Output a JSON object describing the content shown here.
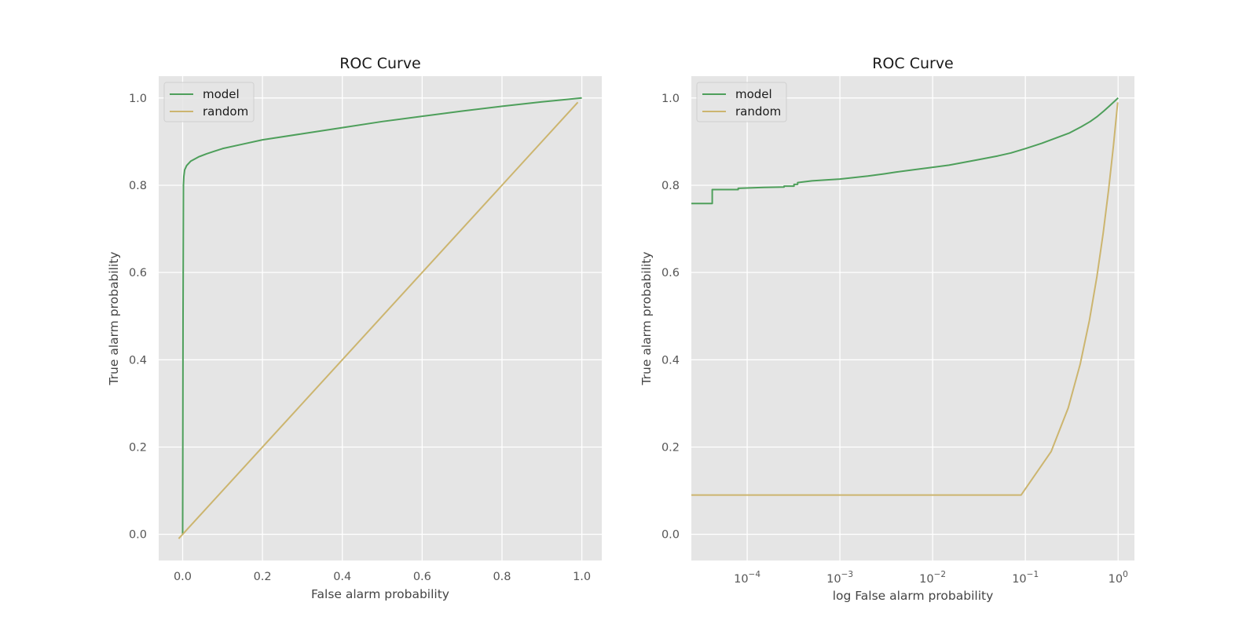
{
  "colors": {
    "model": "#4e9f5b",
    "random": "#ccb56f",
    "panel_bg": "#e5e5e5",
    "grid": "#ffffff"
  },
  "chart_data": [
    {
      "type": "line",
      "title": "ROC Curve",
      "xlabel": "False alarm probability",
      "ylabel": "True alarm probability",
      "xscale": "linear",
      "xlim": [
        -0.06,
        1.05
      ],
      "ylim": [
        -0.06,
        1.05
      ],
      "xticks": [
        0.0,
        0.2,
        0.4,
        0.6,
        0.8,
        1.0
      ],
      "xtick_labels": [
        "0.0",
        "0.2",
        "0.4",
        "0.6",
        "0.8",
        "1.0"
      ],
      "yticks": [
        0.0,
        0.2,
        0.4,
        0.6,
        0.8,
        1.0
      ],
      "ytick_labels": [
        "0.0",
        "0.2",
        "0.4",
        "0.6",
        "0.8",
        "1.0"
      ],
      "grid": true,
      "legend": {
        "position": "upper-left",
        "entries": [
          "model",
          "random"
        ]
      },
      "series": [
        {
          "name": "model",
          "color": "#4e9f5b",
          "x": [
            0.0,
            0.001,
            0.002,
            0.003,
            0.005,
            0.01,
            0.02,
            0.04,
            0.06,
            0.08,
            0.1,
            0.15,
            0.2,
            0.3,
            0.4,
            0.5,
            0.6,
            0.7,
            0.8,
            0.9,
            1.0
          ],
          "y": [
            0.0,
            0.5,
            0.8,
            0.82,
            0.835,
            0.845,
            0.855,
            0.865,
            0.872,
            0.878,
            0.884,
            0.894,
            0.904,
            0.918,
            0.932,
            0.946,
            0.958,
            0.97,
            0.981,
            0.991,
            1.0
          ]
        },
        {
          "name": "random",
          "color": "#ccb56f",
          "x": [
            -0.01,
            0.99
          ],
          "y": [
            -0.01,
            0.99
          ]
        }
      ]
    },
    {
      "type": "line",
      "title": "ROC Curve",
      "xlabel": "log False alarm probability",
      "ylabel": "True alarm probability",
      "xscale": "log",
      "xlim": [
        2.5e-05,
        1.5
      ],
      "ylim": [
        -0.06,
        1.05
      ],
      "xticks": [
        0.0001,
        0.001,
        0.01,
        0.1,
        1
      ],
      "xtick_labels": [
        {
          "base": "10",
          "exp": "−4"
        },
        {
          "base": "10",
          "exp": "−3"
        },
        {
          "base": "10",
          "exp": "−2"
        },
        {
          "base": "10",
          "exp": "−1"
        },
        {
          "base": "10",
          "exp": "0"
        }
      ],
      "yticks": [
        0.0,
        0.2,
        0.4,
        0.6,
        0.8,
        1.0
      ],
      "ytick_labels": [
        "0.0",
        "0.2",
        "0.4",
        "0.6",
        "0.8",
        "1.0"
      ],
      "grid": true,
      "legend": {
        "position": "upper-left",
        "entries": [
          "model",
          "random"
        ]
      },
      "series": [
        {
          "name": "model",
          "color": "#4e9f5b",
          "x": [
            2.5e-05,
            4.2e-05,
            4.2e-05,
            8e-05,
            8e-05,
            0.00015,
            0.00025,
            0.00025,
            0.00032,
            0.00032,
            0.00035,
            0.00035,
            0.0005,
            0.0007,
            0.001,
            0.002,
            0.003,
            0.004,
            0.006,
            0.01,
            0.015,
            0.02,
            0.03,
            0.05,
            0.07,
            0.1,
            0.15,
            0.2,
            0.3,
            0.4,
            0.5,
            0.6,
            0.7,
            0.8,
            1.0
          ],
          "y": [
            0.758,
            0.758,
            0.79,
            0.79,
            0.793,
            0.795,
            0.796,
            0.798,
            0.798,
            0.802,
            0.802,
            0.806,
            0.81,
            0.812,
            0.814,
            0.821,
            0.826,
            0.83,
            0.835,
            0.841,
            0.846,
            0.851,
            0.858,
            0.867,
            0.874,
            0.884,
            0.896,
            0.906,
            0.92,
            0.934,
            0.946,
            0.958,
            0.97,
            0.981,
            1.0
          ]
        },
        {
          "name": "random",
          "color": "#ccb56f",
          "x": [
            2.5e-05,
            0.09,
            0.19,
            0.29,
            0.39,
            0.49,
            0.59,
            0.69,
            0.79,
            0.89,
            0.99
          ],
          "y": [
            0.09,
            0.09,
            0.19,
            0.29,
            0.39,
            0.49,
            0.59,
            0.69,
            0.79,
            0.89,
            0.99
          ]
        }
      ]
    }
  ]
}
